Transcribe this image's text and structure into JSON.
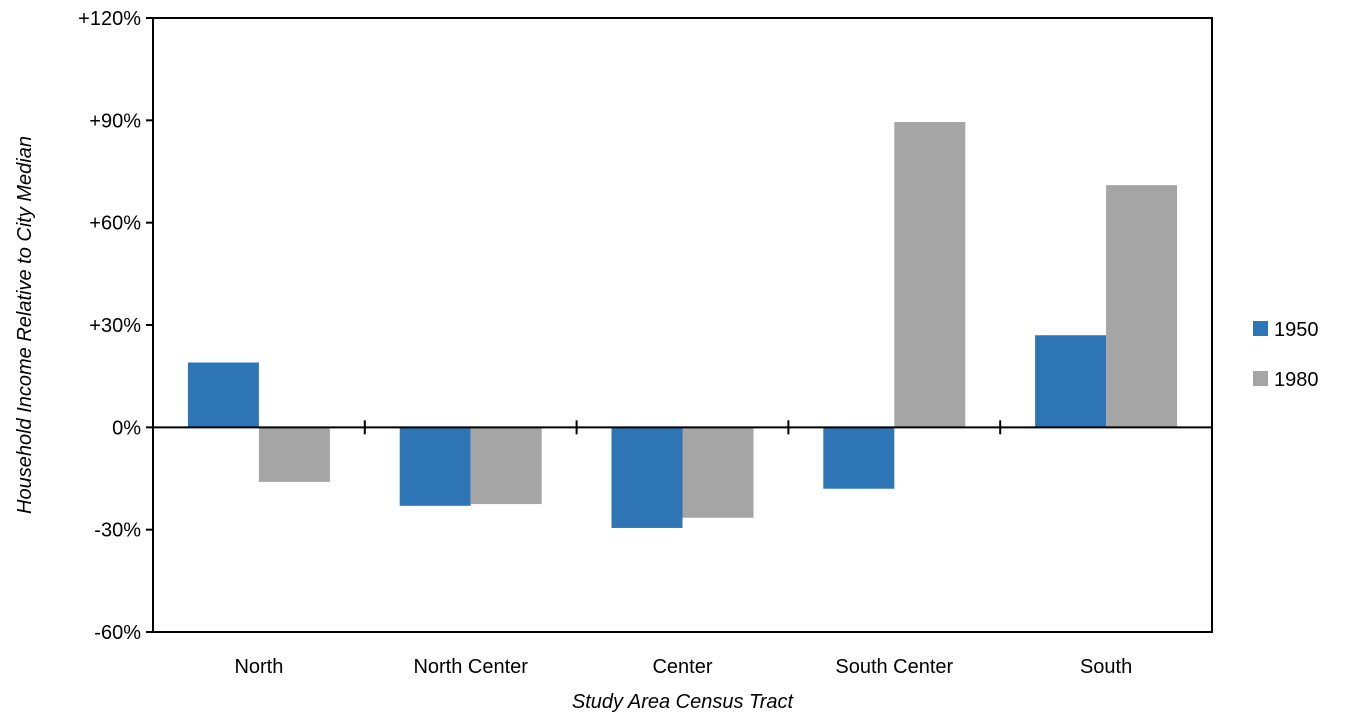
{
  "chart_data": {
    "type": "bar",
    "title": "",
    "xlabel": "Study Area Census Tract",
    "ylabel": "Household Income Relative to City Median",
    "categories": [
      "North",
      "North Center",
      "Center",
      "South Center",
      "South"
    ],
    "series": [
      {
        "name": "1950",
        "color": "#2E75B6",
        "values": [
          19,
          -23,
          -29.5,
          -18,
          27
        ]
      },
      {
        "name": "1980",
        "color": "#A5A5A5",
        "values": [
          -16,
          -22.5,
          -26.5,
          89.5,
          71
        ]
      }
    ],
    "ylim": [
      -60,
      120
    ],
    "yticks": [
      -60,
      -30,
      0,
      30,
      60,
      90,
      120
    ],
    "ytick_labels": [
      "-60%",
      "-30%",
      "0%",
      "+30%",
      "+60%",
      "+90%",
      "+120%"
    ],
    "legend_position": "right",
    "grid": false
  }
}
